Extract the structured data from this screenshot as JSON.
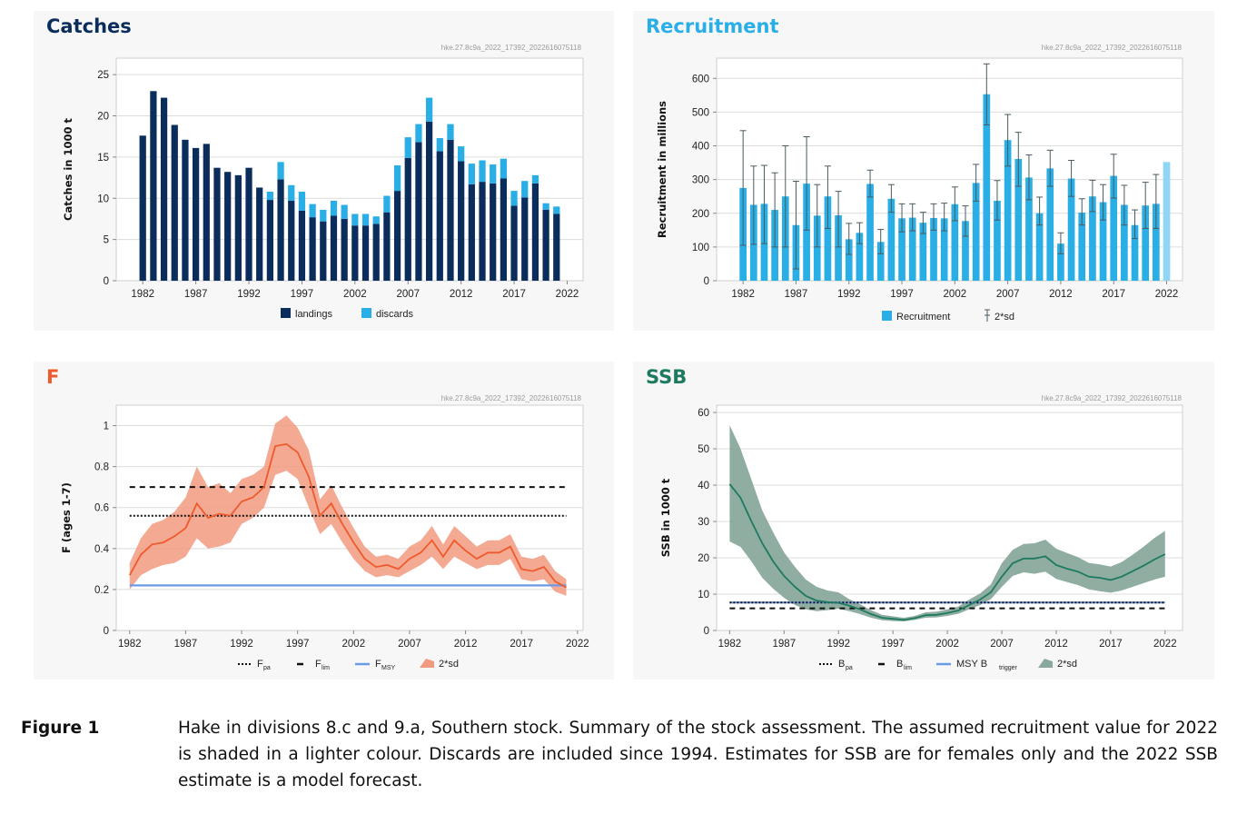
{
  "colors": {
    "catches_title": "#0b2d5c",
    "recruitment_title": "#29aee5",
    "f_title": "#ee5a2b",
    "ssb_title": "#1d7a60",
    "landings": "#0b2d5c",
    "discards": "#29aee5",
    "recruitment": "#29aee5",
    "recruitment_assumed": "#8fd6f4",
    "f_line": "#ee5a2b",
    "f_band": "#f29a80",
    "msy_line": "#6b9be6",
    "ssb_line": "#1d7a60",
    "ssb_band": "#8aa99c"
  },
  "panels": {
    "catches": {
      "title": "Catches",
      "id": "hke.27.8c9a_2022_17392_2022616075118"
    },
    "recruitment": {
      "title": "Recruitment",
      "id": "hke.27.8c9a_2022_17392_2022616075118"
    },
    "f": {
      "title": "F",
      "id": "hke.27.8c9a_2022_17392_2022616075118"
    },
    "ssb": {
      "title": "SSB",
      "id": "hke.27.8c9a_2022_17392_2022616075118"
    }
  },
  "caption": {
    "label": "Figure 1",
    "text": "Hake in divisions 8.c and 9.a, Southern stock. Summary of the stock assessment. The assumed recruitment value for 2022 is shaded in a lighter colour. Discards are included since 1994. Estimates for SSB are for females only and the 2022 SSB estimate is a model forecast."
  },
  "chart_data": [
    {
      "type": "bar",
      "name": "catches",
      "ylabel": "Catches in 1000 t",
      "ylim": [
        0,
        27
      ],
      "yticks": [
        0,
        5,
        10,
        15,
        20,
        25
      ],
      "xticks": [
        1982,
        1987,
        1992,
        1997,
        2002,
        2007,
        2012,
        2017,
        2022
      ],
      "stacked": true,
      "x": [
        1982,
        1983,
        1984,
        1985,
        1986,
        1987,
        1988,
        1989,
        1990,
        1991,
        1992,
        1993,
        1994,
        1995,
        1996,
        1997,
        1998,
        1999,
        2000,
        2001,
        2002,
        2003,
        2004,
        2005,
        2006,
        2007,
        2008,
        2009,
        2010,
        2011,
        2012,
        2013,
        2014,
        2015,
        2016,
        2017,
        2018,
        2019,
        2020,
        2021
      ],
      "series": [
        {
          "name": "landings",
          "values": [
            17.6,
            23.0,
            22.2,
            18.9,
            17.1,
            16.1,
            16.6,
            13.7,
            13.2,
            12.8,
            13.7,
            11.3,
            9.8,
            12.3,
            9.7,
            8.5,
            7.7,
            7.2,
            7.9,
            7.5,
            6.7,
            6.7,
            6.9,
            8.3,
            10.9,
            14.9,
            16.8,
            19.3,
            15.7,
            17.1,
            14.5,
            11.7,
            12.0,
            11.8,
            12.4,
            9.1,
            10.1,
            11.8,
            8.6,
            8.1
          ]
        },
        {
          "name": "discards",
          "values": [
            0,
            0,
            0,
            0,
            0,
            0,
            0,
            0,
            0,
            0,
            0,
            0,
            1.0,
            2.1,
            1.9,
            2.3,
            1.6,
            1.4,
            1.8,
            1.7,
            1.4,
            1.4,
            0.9,
            2.0,
            3.1,
            2.5,
            2.2,
            2.9,
            1.6,
            1.9,
            1.8,
            2.5,
            2.6,
            2.3,
            2.4,
            1.8,
            2.0,
            1.0,
            0.8,
            0.9
          ]
        }
      ],
      "legend": [
        "landings",
        "discards"
      ]
    },
    {
      "type": "bar",
      "name": "recruitment",
      "ylabel": "Recruitment in millions",
      "ylim": [
        0,
        660
      ],
      "yticks": [
        0,
        100,
        200,
        300,
        400,
        500,
        600
      ],
      "xticks": [
        1982,
        1987,
        1992,
        1997,
        2002,
        2007,
        2012,
        2017,
        2022
      ],
      "x": [
        1982,
        1983,
        1984,
        1985,
        1986,
        1987,
        1988,
        1989,
        1990,
        1991,
        1992,
        1993,
        1994,
        1995,
        1996,
        1997,
        1998,
        1999,
        2000,
        2001,
        2002,
        2003,
        2004,
        2005,
        2006,
        2007,
        2008,
        2009,
        2010,
        2011,
        2012,
        2013,
        2014,
        2015,
        2016,
        2017,
        2018,
        2019,
        2020,
        2021,
        2022
      ],
      "series": [
        {
          "name": "Recruitment",
          "values": [
            275,
            225,
            228,
            210,
            250,
            165,
            288,
            193,
            250,
            194,
            123,
            142,
            287,
            115,
            243,
            185,
            187,
            172,
            186,
            185,
            227,
            177,
            290,
            553,
            237,
            417,
            361,
            306,
            200,
            333,
            110,
            303,
            202,
            250,
            233,
            311,
            225,
            165,
            223,
            228,
            352
          ]
        },
        {
          "name": "2*sd",
          "low": [
            105,
            108,
            110,
            100,
            100,
            35,
            150,
            100,
            155,
            100,
            78,
            110,
            248,
            80,
            203,
            145,
            148,
            140,
            150,
            148,
            178,
            132,
            236,
            462,
            180,
            340,
            280,
            240,
            165,
            280,
            80,
            250,
            165,
            205,
            180,
            245,
            165,
            125,
            155,
            155,
            null
          ],
          "high": [
            445,
            340,
            342,
            320,
            400,
            295,
            427,
            285,
            340,
            265,
            170,
            172,
            328,
            152,
            285,
            228,
            228,
            203,
            228,
            230,
            278,
            222,
            345,
            643,
            297,
            493,
            440,
            373,
            248,
            387,
            142,
            357,
            243,
            298,
            285,
            375,
            283,
            210,
            292,
            315,
            null
          ]
        }
      ],
      "assumed_year": 2022,
      "legend": [
        "Recruitment",
        "2*sd"
      ]
    },
    {
      "type": "line",
      "name": "F",
      "ylabel": "F (ages 1-7)",
      "ylim": [
        0,
        1.1
      ],
      "yticks": [
        0,
        0.2,
        0.4,
        0.6,
        0.8,
        1
      ],
      "xticks": [
        1982,
        1987,
        1992,
        1997,
        2002,
        2007,
        2012,
        2017,
        2022
      ],
      "x": [
        1982,
        1983,
        1984,
        1985,
        1986,
        1987,
        1988,
        1989,
        1990,
        1991,
        1992,
        1993,
        1994,
        1995,
        1996,
        1997,
        1998,
        1999,
        2000,
        2001,
        2002,
        2003,
        2004,
        2005,
        2006,
        2007,
        2008,
        2009,
        2010,
        2011,
        2012,
        2013,
        2014,
        2015,
        2016,
        2017,
        2018,
        2019,
        2020,
        2021
      ],
      "series": [
        {
          "name": "F",
          "values": [
            0.27,
            0.37,
            0.42,
            0.43,
            0.46,
            0.5,
            0.62,
            0.55,
            0.57,
            0.56,
            0.63,
            0.65,
            0.7,
            0.9,
            0.91,
            0.87,
            0.75,
            0.56,
            0.62,
            0.52,
            0.43,
            0.35,
            0.31,
            0.32,
            0.3,
            0.35,
            0.38,
            0.44,
            0.36,
            0.44,
            0.39,
            0.35,
            0.38,
            0.38,
            0.41,
            0.3,
            0.29,
            0.31,
            0.24,
            0.21
          ]
        },
        {
          "name": "2*sd",
          "low": [
            0.2,
            0.27,
            0.3,
            0.32,
            0.33,
            0.36,
            0.45,
            0.4,
            0.41,
            0.43,
            0.52,
            0.55,
            0.6,
            0.76,
            0.78,
            0.74,
            0.6,
            0.47,
            0.52,
            0.43,
            0.35,
            0.29,
            0.26,
            0.27,
            0.26,
            0.29,
            0.32,
            0.36,
            0.3,
            0.36,
            0.33,
            0.3,
            0.32,
            0.32,
            0.35,
            0.25,
            0.24,
            0.25,
            0.19,
            0.17
          ]
        },
        {
          "name": "2*sd high",
          "values_high": [
            0.33,
            0.45,
            0.52,
            0.54,
            0.58,
            0.65,
            0.8,
            0.7,
            0.72,
            0.67,
            0.74,
            0.76,
            0.8,
            1.01,
            1.05,
            0.99,
            0.88,
            0.64,
            0.71,
            0.6,
            0.5,
            0.41,
            0.36,
            0.37,
            0.35,
            0.41,
            0.44,
            0.51,
            0.42,
            0.51,
            0.46,
            0.41,
            0.44,
            0.44,
            0.47,
            0.36,
            0.35,
            0.37,
            0.29,
            0.25
          ]
        }
      ],
      "reference_lines": {
        "Fpa": 0.56,
        "Flim": 0.7,
        "FMSY": 0.22
      },
      "legend": [
        "Fpa",
        "Flim",
        "FMSY",
        "2*sd"
      ]
    },
    {
      "type": "line",
      "name": "SSB",
      "ylabel": "SSB in 1000 t",
      "ylim": [
        0,
        62
      ],
      "yticks": [
        0,
        10,
        20,
        30,
        40,
        50,
        60
      ],
      "xticks": [
        1982,
        1987,
        1992,
        1997,
        2002,
        2007,
        2012,
        2017,
        2022
      ],
      "x": [
        1982,
        1983,
        1984,
        1985,
        1986,
        1987,
        1988,
        1989,
        1990,
        1991,
        1992,
        1993,
        1994,
        1995,
        1996,
        1997,
        1998,
        1999,
        2000,
        2001,
        2002,
        2003,
        2004,
        2005,
        2006,
        2007,
        2008,
        2009,
        2010,
        2011,
        2012,
        2013,
        2014,
        2015,
        2016,
        2017,
        2018,
        2019,
        2020,
        2021,
        2022
      ],
      "series": [
        {
          "name": "SSB",
          "values": [
            40.3,
            36.5,
            30.0,
            24.0,
            19.0,
            15.0,
            12.0,
            9.5,
            8.2,
            7.8,
            7.6,
            6.8,
            5.8,
            4.5,
            3.5,
            3.2,
            2.9,
            3.4,
            4.2,
            4.3,
            4.8,
            5.5,
            7.0,
            8.5,
            10.5,
            14.8,
            18.5,
            19.8,
            19.8,
            20.4,
            18.0,
            17.0,
            16.2,
            14.8,
            14.5,
            13.9,
            14.8,
            16.3,
            17.8,
            19.5,
            21.0
          ]
        },
        {
          "name": "2*sd",
          "low": [
            24.5,
            23.0,
            19.0,
            14.5,
            11.5,
            9.0,
            7.0,
            5.8,
            5.3,
            5.6,
            6.0,
            5.3,
            4.5,
            3.5,
            2.8,
            2.6,
            2.5,
            2.9,
            3.5,
            3.6,
            4.0,
            4.6,
            5.8,
            7.0,
            8.6,
            12.0,
            15.0,
            16.0,
            15.6,
            16.2,
            14.2,
            13.3,
            12.5,
            11.3,
            10.8,
            10.4,
            11.0,
            12.0,
            13.0,
            14.0,
            14.8
          ],
          "high": [
            56.5,
            50.0,
            41.5,
            33.0,
            27.0,
            21.5,
            17.5,
            14.0,
            12.0,
            11.0,
            10.5,
            8.6,
            7.2,
            5.6,
            4.3,
            3.9,
            3.5,
            4.0,
            5.0,
            5.2,
            5.8,
            6.6,
            8.5,
            10.2,
            12.7,
            18.5,
            22.2,
            23.8,
            24.0,
            25.0,
            22.5,
            21.3,
            20.2,
            18.6,
            18.2,
            17.6,
            18.8,
            20.8,
            23.0,
            25.4,
            27.4
          ]
        }
      ],
      "reference_lines": {
        "Bpa": 7.7,
        "Blim": 6.1,
        "MSYBtrigger": 7.7
      },
      "legend": [
        "Bpa",
        "Blim",
        "MSY B trigger",
        "2*sd"
      ]
    }
  ]
}
